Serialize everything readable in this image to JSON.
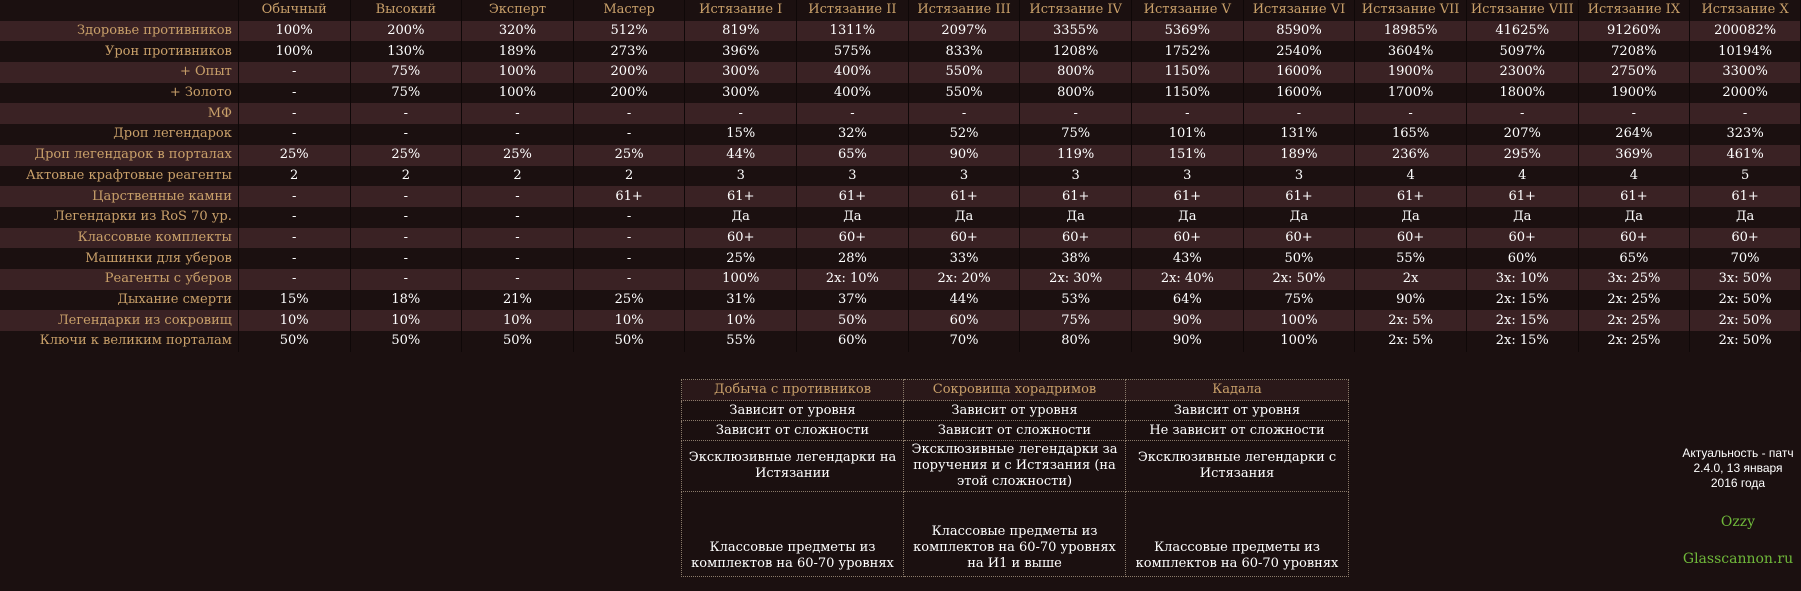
{
  "columns": [
    "Обычный",
    "Высокий",
    "Эксперт",
    "Мастер",
    "Истязание I",
    "Истязание II",
    "Истязание III",
    "Истязание IV",
    "Истязание V",
    "Истязание VI",
    "Истязание VII",
    "Истязание VIII",
    "Истязание IX",
    "Истязание X"
  ],
  "rows": [
    {
      "label": "Здоровье противников",
      "values": [
        "100%",
        "200%",
        "320%",
        "512%",
        "819%",
        "1311%",
        "2097%",
        "3355%",
        "5369%",
        "8590%",
        "18985%",
        "41625%",
        "91260%",
        "200082%"
      ]
    },
    {
      "label": "Урон противников",
      "values": [
        "100%",
        "130%",
        "189%",
        "273%",
        "396%",
        "575%",
        "833%",
        "1208%",
        "1752%",
        "2540%",
        "3604%",
        "5097%",
        "7208%",
        "10194%"
      ]
    },
    {
      "label": "+ Опыт",
      "values": [
        "-",
        "75%",
        "100%",
        "200%",
        "300%",
        "400%",
        "550%",
        "800%",
        "1150%",
        "1600%",
        "1900%",
        "2300%",
        "2750%",
        "3300%"
      ]
    },
    {
      "label": "+ Золото",
      "values": [
        "-",
        "75%",
        "100%",
        "200%",
        "300%",
        "400%",
        "550%",
        "800%",
        "1150%",
        "1600%",
        "1700%",
        "1800%",
        "1900%",
        "2000%"
      ]
    },
    {
      "label": "МФ",
      "values": [
        "-",
        "-",
        "-",
        "-",
        "-",
        "-",
        "-",
        "-",
        "-",
        "-",
        "-",
        "-",
        "-",
        "-"
      ]
    },
    {
      "label": "Дроп легендарок",
      "values": [
        "-",
        "-",
        "-",
        "-",
        "15%",
        "32%",
        "52%",
        "75%",
        "101%",
        "131%",
        "165%",
        "207%",
        "264%",
        "323%"
      ]
    },
    {
      "label": "Дроп легендарок в порталах",
      "values": [
        "25%",
        "25%",
        "25%",
        "25%",
        "44%",
        "65%",
        "90%",
        "119%",
        "151%",
        "189%",
        "236%",
        "295%",
        "369%",
        "461%"
      ]
    },
    {
      "label": "Актовые крафтовые реагенты",
      "values": [
        "2",
        "2",
        "2",
        "2",
        "3",
        "3",
        "3",
        "3",
        "3",
        "3",
        "4",
        "4",
        "4",
        "5"
      ]
    },
    {
      "label": "Царственные камни",
      "values": [
        "-",
        "-",
        "-",
        "61+",
        "61+",
        "61+",
        "61+",
        "61+",
        "61+",
        "61+",
        "61+",
        "61+",
        "61+",
        "61+"
      ]
    },
    {
      "label": "Легендарки из RoS 70 ур.",
      "values": [
        "-",
        "-",
        "-",
        "-",
        "Да",
        "Да",
        "Да",
        "Да",
        "Да",
        "Да",
        "Да",
        "Да",
        "Да",
        "Да"
      ]
    },
    {
      "label": "Классовые комплекты",
      "values": [
        "-",
        "-",
        "-",
        "-",
        "60+",
        "60+",
        "60+",
        "60+",
        "60+",
        "60+",
        "60+",
        "60+",
        "60+",
        "60+"
      ]
    },
    {
      "label": "Машинки для уберов",
      "values": [
        "-",
        "-",
        "-",
        "-",
        "25%",
        "28%",
        "33%",
        "38%",
        "43%",
        "50%",
        "55%",
        "60%",
        "65%",
        "70%"
      ]
    },
    {
      "label": "Реагенты с уберов",
      "values": [
        "-",
        "-",
        "-",
        "-",
        "100%",
        "2x: 10%",
        "2x: 20%",
        "2x: 30%",
        "2x: 40%",
        "2x: 50%",
        "2x",
        "3x: 10%",
        "3x: 25%",
        "3x: 50%"
      ]
    },
    {
      "label": "Дыхание смерти",
      "values": [
        "15%",
        "18%",
        "21%",
        "25%",
        "31%",
        "37%",
        "44%",
        "53%",
        "64%",
        "75%",
        "90%",
        "2x: 15%",
        "2x: 25%",
        "2x: 50%"
      ]
    },
    {
      "label": "Легендарки из сокровищ",
      "values": [
        "10%",
        "10%",
        "10%",
        "10%",
        "10%",
        "50%",
        "60%",
        "75%",
        "90%",
        "100%",
        "2x: 5%",
        "2x: 15%",
        "2x: 25%",
        "2x: 50%"
      ]
    },
    {
      "label": "Ключи к великим порталам",
      "values": [
        "50%",
        "50%",
        "50%",
        "50%",
        "55%",
        "60%",
        "70%",
        "80%",
        "90%",
        "100%",
        "2x: 5%",
        "2x: 15%",
        "2x: 25%",
        "2x: 50%"
      ]
    }
  ],
  "loot": {
    "headers": [
      "Добыча с противников",
      "Сокровища хорадримов",
      "Кадала"
    ],
    "rows": [
      [
        "Зависит от уровня",
        "Зависит от уровня",
        "Зависит от уровня"
      ],
      [
        "Зависит от сложности",
        "Зависит от сложности",
        "Не зависит от сложности"
      ],
      [
        "Эксклюзивные легендарки на Истязании",
        "Эксклюзивные легендарки за поручения и с Истязания (на этой сложности)",
        "Эксклюзивные легендарки с Истязания"
      ],
      [
        "Классовые предметы из комплектов на 60-70 уровнях",
        "Классовые предметы из комплектов на 60-70 уровнях на И1 и выше",
        "Классовые предметы из комплектов на 60-70 уровнях"
      ]
    ]
  },
  "note": "Актуальность - патч 2.4.0, 13 января 2016 года",
  "author": "Ozzy",
  "site": "Glasscannon.ru"
}
